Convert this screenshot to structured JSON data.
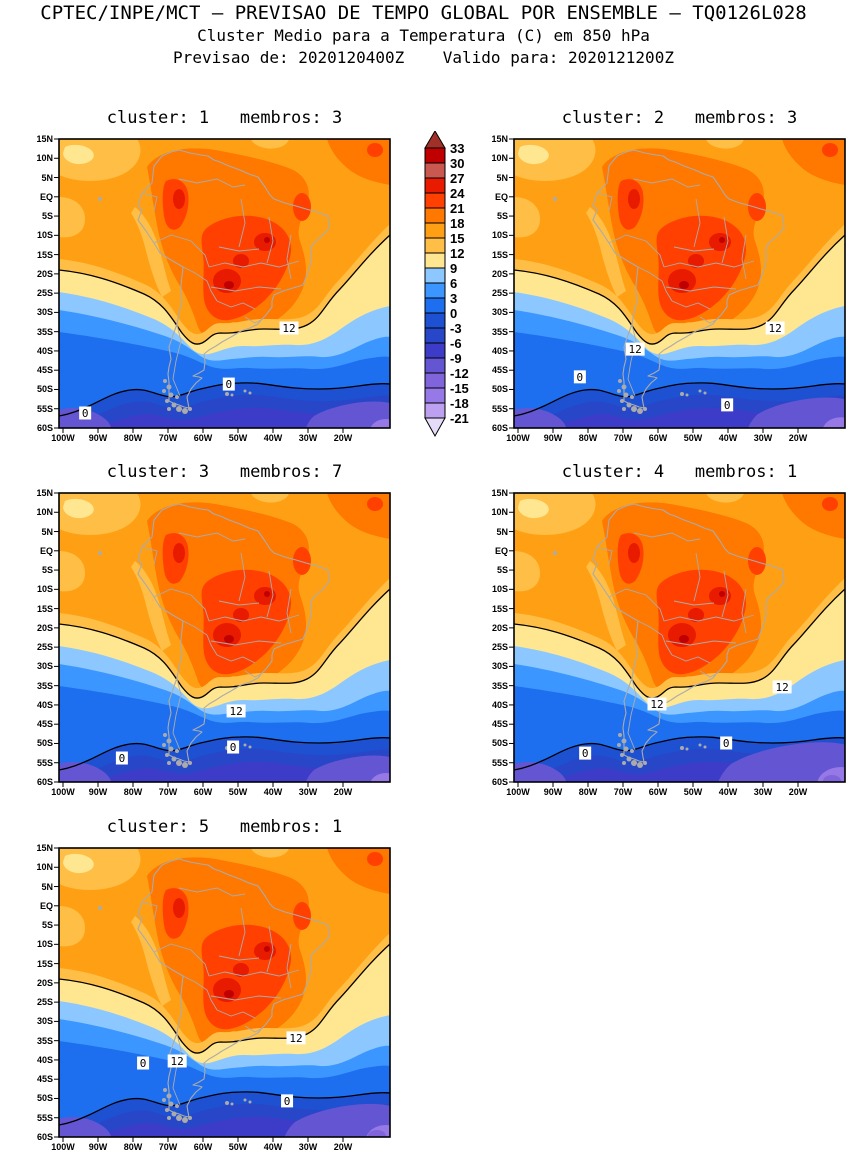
{
  "header": {
    "line1": "CPTEC/INPE/MCT — PREVISAO DE TEMPO GLOBAL POR ENSEMBLE — TQ0126L028",
    "line2": "Cluster Medio para a Temperatura (C) em 850 hPa",
    "line3": "Previsao de: 2020120400Z    Valido para: 2020121200Z"
  },
  "axes": {
    "lat_labels": [
      "15N",
      "10N",
      "5N",
      "EQ",
      "5S",
      "10S",
      "15S",
      "20S",
      "25S",
      "30S",
      "35S",
      "40S",
      "45S",
      "50S",
      "55S",
      "60S"
    ],
    "lon_labels": [
      "100W",
      "90W",
      "80W",
      "70W",
      "60W",
      "50W",
      "40W",
      "30W",
      "20W"
    ]
  },
  "colorbar": {
    "tick_labels": [
      "33",
      "30",
      "27",
      "24",
      "21",
      "18",
      "15",
      "12",
      "9",
      "6",
      "3",
      "0",
      "-3",
      "-6",
      "-9",
      "-12",
      "-15",
      "-18",
      "-21"
    ],
    "colors": [
      "#C00000",
      "#C85850",
      "#E81A00",
      "#FF4000",
      "#FF7800",
      "#FFA014",
      "#FFBE46",
      "#FFE691",
      "#8CC8FF",
      "#3C96FF",
      "#1E6EF0",
      "#1E50D2",
      "#2846C8",
      "#3C3CC8",
      "#6455D2",
      "#8064DC",
      "#9678E6",
      "#BEA0F0"
    ],
    "arrow_top_color": "#A03028",
    "arrow_bottom_color": "#E4DCF8",
    "outline_color": "#000000"
  },
  "map_style": {
    "coast_color": "#ABABAB",
    "contour_color": "#000000"
  },
  "panels": [
    {
      "title": "cluster: 1   membros: 3",
      "cluster": "1",
      "membros": "3",
      "purple_scale": 1.0,
      "contour_labels": [
        {
          "text": "12",
          "fx": 0.695,
          "fy": 0.654
        },
        {
          "text": "0",
          "fx": 0.513,
          "fy": 0.848
        },
        {
          "text": "0",
          "fx": 0.079,
          "fy": 0.948
        }
      ]
    },
    {
      "title": "cluster: 2   membros: 3",
      "cluster": "2",
      "membros": "3",
      "purple_scale": 1.15,
      "contour_labels": [
        {
          "text": "12",
          "fx": 0.789,
          "fy": 0.654
        },
        {
          "text": "12",
          "fx": 0.366,
          "fy": 0.727
        },
        {
          "text": "0",
          "fx": 0.199,
          "fy": 0.823
        },
        {
          "text": "0",
          "fx": 0.644,
          "fy": 0.92
        }
      ]
    },
    {
      "title": "cluster: 3   membros: 7",
      "cluster": "3",
      "membros": "7",
      "purple_scale": 1.0,
      "contour_labels": [
        {
          "text": "12",
          "fx": 0.535,
          "fy": 0.754
        },
        {
          "text": "0",
          "fx": 0.526,
          "fy": 0.879
        },
        {
          "text": "0",
          "fx": 0.19,
          "fy": 0.917
        }
      ]
    },
    {
      "title": "cluster: 4   membros: 1",
      "cluster": "4",
      "membros": "1",
      "purple_scale": 1.5,
      "contour_labels": [
        {
          "text": "12",
          "fx": 0.81,
          "fy": 0.671
        },
        {
          "text": "12",
          "fx": 0.432,
          "fy": 0.73
        },
        {
          "text": "0",
          "fx": 0.215,
          "fy": 0.9
        },
        {
          "text": "0",
          "fx": 0.641,
          "fy": 0.865
        }
      ]
    },
    {
      "title": "cluster: 5   membros: 1",
      "cluster": "5",
      "membros": "1",
      "purple_scale": 1.25,
      "contour_labels": [
        {
          "text": "12",
          "fx": 0.716,
          "fy": 0.657
        },
        {
          "text": "12",
          "fx": 0.357,
          "fy": 0.737
        },
        {
          "text": "0",
          "fx": 0.254,
          "fy": 0.744
        },
        {
          "text": "0",
          "fx": 0.689,
          "fy": 0.875
        }
      ]
    }
  ],
  "chart_data": {
    "type": "heatmap",
    "subtype": "filled-contour-weather-map",
    "suptitle": "CPTEC/INPE/MCT — PREVISAO DE TEMPO GLOBAL POR ENSEMBLE — TQ0126L028",
    "title": "Cluster Medio para a Temperatura (C) em 850 hPa",
    "init_time": "2020120400Z",
    "valid_time": "2020121200Z",
    "variable": "Temperatura",
    "units": "C",
    "pressure_level_hPa": 850,
    "region": "South America",
    "lon_range": [
      "100W",
      "20W"
    ],
    "lat_range": [
      "15N",
      "60S"
    ],
    "contour_interval": 3,
    "color_levels": [
      33,
      30,
      27,
      24,
      21,
      18,
      15,
      12,
      9,
      6,
      3,
      0,
      -3,
      -6,
      -9,
      -12,
      -15,
      -18,
      -21
    ],
    "level_colors_top_to_bottom": [
      "#C00000",
      "#C85850",
      "#E81A00",
      "#FF4000",
      "#FF7800",
      "#FFA014",
      "#FFBE46",
      "#FFE691",
      "#8CC8FF",
      "#3C96FF",
      "#1E6EF0",
      "#1E50D2",
      "#2846C8",
      "#3C3CC8",
      "#6455D2",
      "#8064DC",
      "#9678E6",
      "#BEA0F0"
    ],
    "labeled_contours_C": [
      12,
      0
    ],
    "legend_position": "between panel 1 and panel 2, vertical colorbar with end arrows",
    "grid": false,
    "panels": [
      {
        "cluster": 1,
        "membros": 3,
        "labeled_contours": [
          12,
          0,
          0
        ],
        "pattern": "warm orange/red (18-27C) over tropical Brazil, 12C contour dipping near Andes ~35S, 0C contour ~45-55S, purple (-9 to -15C) far south"
      },
      {
        "cluster": 2,
        "membros": 3,
        "labeled_contours": [
          12,
          12,
          0,
          0
        ],
        "pattern": "similar, wider yellow 9-12C wedge over SE Atlantic, deeper cold trough over Patagonia"
      },
      {
        "cluster": 3,
        "membros": 7,
        "labeled_contours": [
          12,
          0,
          0
        ],
        "pattern": "similar, 12C contour labeled near 60W/37S, 0C loop around 75W"
      },
      {
        "cluster": 4,
        "membros": 1,
        "labeled_contours": [
          12,
          12,
          0,
          0
        ],
        "pattern": "similar, larger purple (-9 to -15C) area in far southeast"
      },
      {
        "cluster": 5,
        "membros": 1,
        "labeled_contours": [
          12,
          12,
          0,
          0
        ],
        "pattern": "similar, 0C contour bulging north near 80W"
      }
    ]
  }
}
